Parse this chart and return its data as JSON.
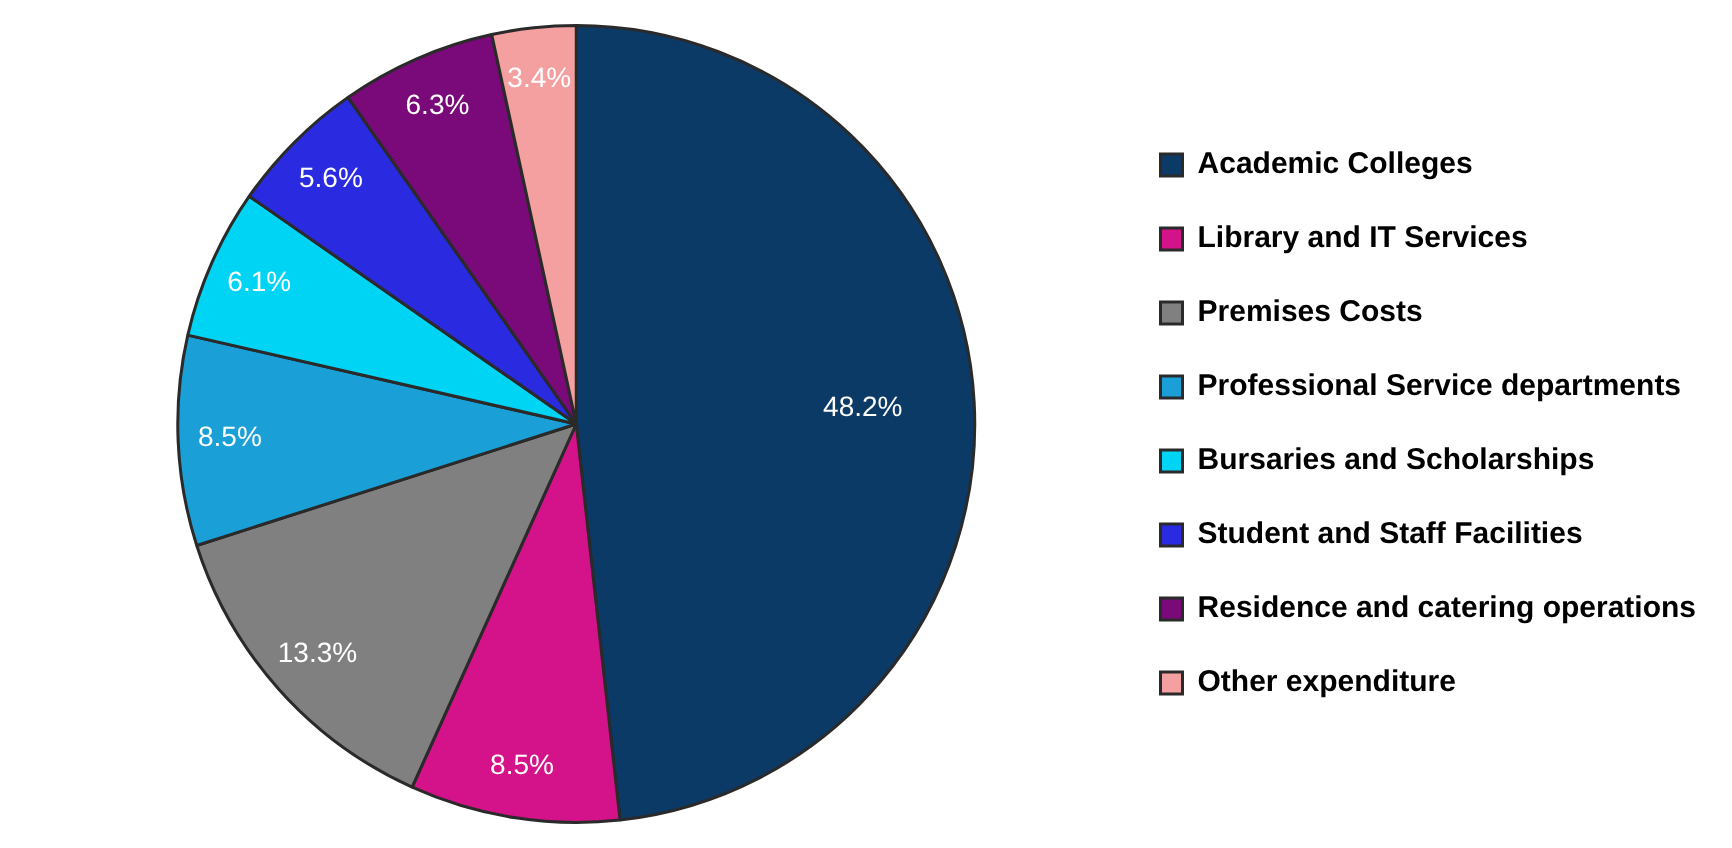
{
  "chart_data": {
    "type": "pie",
    "categories": [
      "Academic Colleges",
      "Library and IT Services",
      "Premises Costs",
      "Professional Service departments",
      "Bursaries and Scholarships",
      "Student and Staff Facilities",
      "Residence and catering operations",
      "Other expenditure"
    ],
    "values": [
      48.2,
      8.5,
      13.3,
      8.5,
      6.1,
      5.6,
      6.3,
      3.4
    ],
    "colors": [
      "#0b3a66",
      "#d4138a",
      "#808080",
      "#1aa0d6",
      "#00d4f4",
      "#2a2ae0",
      "#7a0a7a",
      "#f4a0a0"
    ],
    "value_labels": [
      "48.2%",
      "8.5%",
      "13.3%",
      "8.5%",
      "6.1%",
      "5.6%",
      "6.3%",
      "3.4%"
    ],
    "legend": "right"
  }
}
